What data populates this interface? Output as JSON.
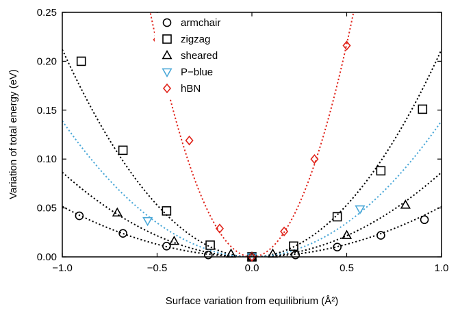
{
  "chart_data": {
    "type": "scatter",
    "title": "",
    "xlabel": "Surface variation from equilibrium (Å²)",
    "ylabel": "Variation of total energy (eV)",
    "xlim": [
      -1.0,
      1.0
    ],
    "ylim": [
      0.0,
      0.25
    ],
    "x_ticks": [
      -1.0,
      -0.5,
      0.0,
      0.5,
      1.0
    ],
    "x_tick_labels": [
      "−1.0",
      "−0.5",
      "0.0",
      "0.5",
      "1.0"
    ],
    "y_ticks": [
      0.0,
      0.05,
      0.1,
      0.15,
      0.2,
      0.25
    ],
    "y_tick_labels": [
      "0.00",
      "0.05",
      "0.10",
      "0.15",
      "0.20",
      "0.25"
    ],
    "grid": false,
    "legend_position": "top-left",
    "series": [
      {
        "name": "armchair",
        "marker": "circle",
        "color": "#000000",
        "fit_color": "#000000",
        "fit_quadratic_coeff": 0.0515,
        "x": [
          -0.91,
          -0.68,
          -0.45,
          -0.23,
          0.0,
          0.23,
          0.45,
          0.68,
          0.91
        ],
        "y": [
          0.042,
          0.024,
          0.011,
          0.002,
          0.0,
          0.002,
          0.01,
          0.022,
          0.038
        ]
      },
      {
        "name": "zigzag",
        "marker": "square",
        "color": "#000000",
        "fit_color": "#000000",
        "fit_quadratic_coeff": 0.212,
        "x": [
          -0.9,
          -0.68,
          -0.45,
          -0.22,
          0.0,
          0.22,
          0.45,
          0.68,
          0.9
        ],
        "y": [
          0.2,
          0.109,
          0.047,
          0.012,
          0.0,
          0.011,
          0.041,
          0.088,
          0.151
        ]
      },
      {
        "name": "sheared",
        "marker": "triangle-up",
        "color": "#000000",
        "fit_color": "#000000",
        "fit_quadratic_coeff": 0.0865,
        "x": [
          -0.71,
          -0.41,
          -0.11,
          0.0,
          0.11,
          0.5,
          0.81
        ],
        "y": [
          0.045,
          0.016,
          0.003,
          0.0,
          0.003,
          0.022,
          0.053
        ]
      },
      {
        "name": "P−blue",
        "marker": "triangle-down",
        "color": "#4aa8d8",
        "fit_color": "#4aa8d8",
        "fit_quadratic_coeff": 0.139,
        "x": [
          -0.55,
          0.0,
          0.57
        ],
        "y": [
          0.037,
          0.0,
          0.049
        ]
      },
      {
        "name": "hBN",
        "marker": "diamond",
        "color": "#e0241b",
        "fit_color": "#e0241b",
        "fit_quadratic_coeff": 0.87,
        "x": [
          -0.5,
          -0.33,
          -0.17,
          0.0,
          0.17,
          0.33,
          0.5
        ],
        "y": [
          0.222,
          0.119,
          0.029,
          0.0,
          0.026,
          0.1,
          0.216
        ]
      }
    ]
  }
}
